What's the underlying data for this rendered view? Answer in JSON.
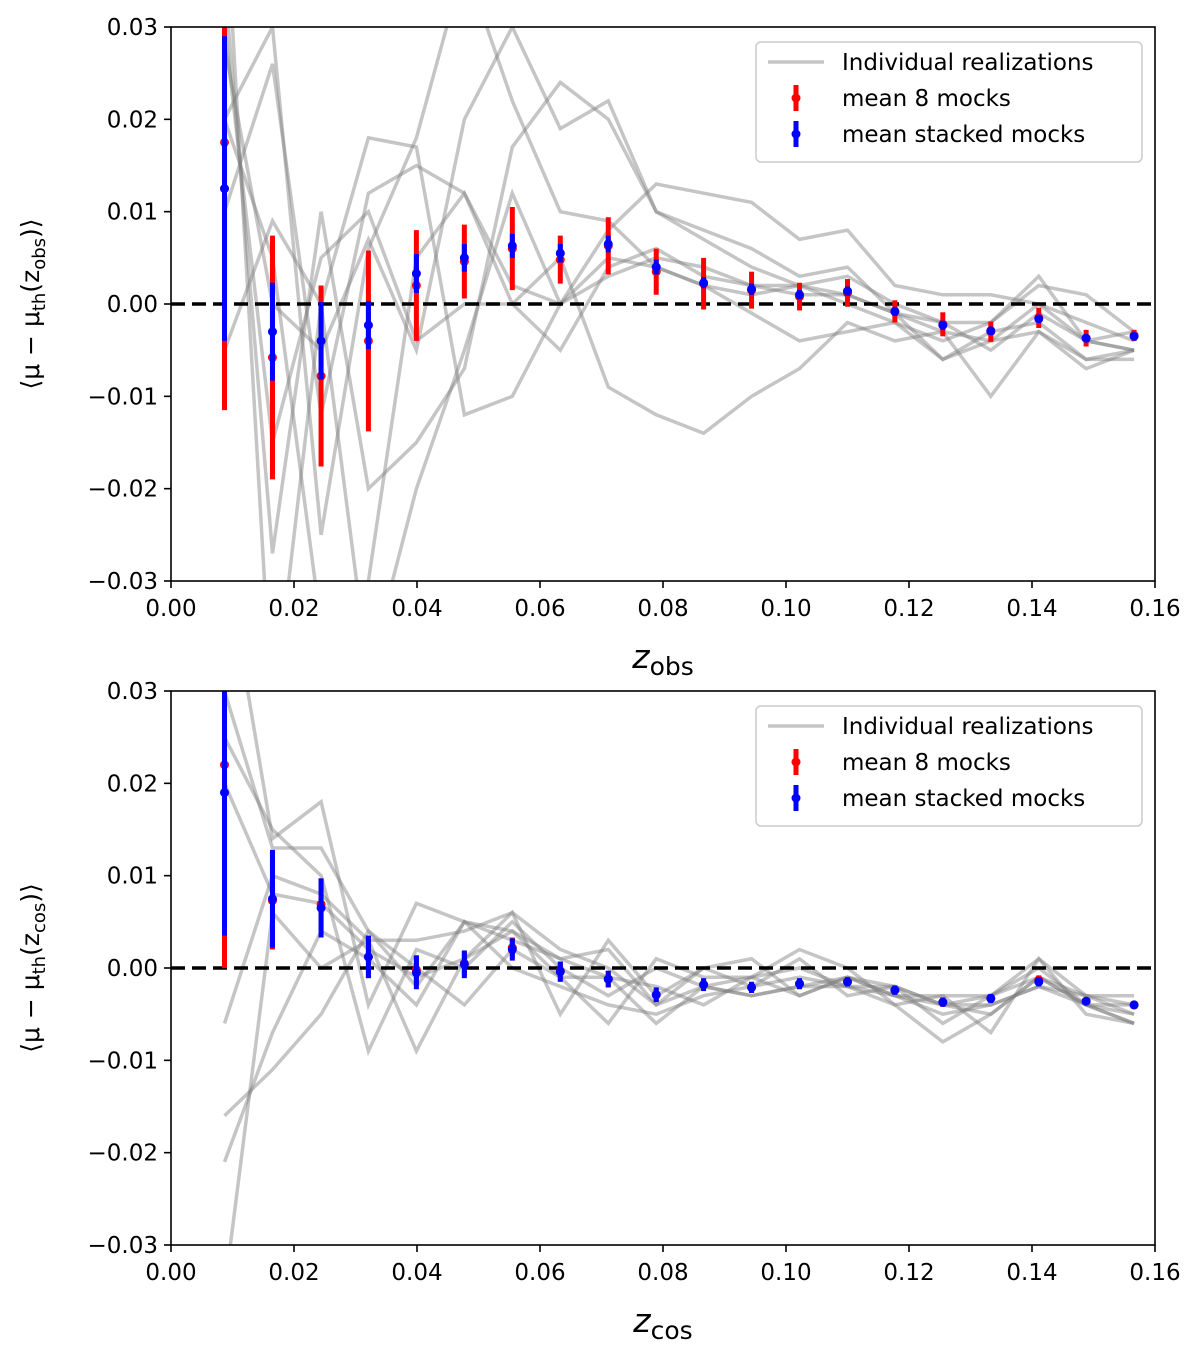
{
  "figure": {
    "colors": {
      "realization": "#7f7f7f",
      "mean8": "#ff0000",
      "stacked": "#0000ff",
      "zero": "#000000"
    }
  },
  "chart_data": [
    {
      "type": "errorbar",
      "panel": "top",
      "xlabel_main": "z",
      "xlabel_sub": "obs",
      "ylabel": "⟨μ − μth(zobs)⟩",
      "ylabel_parts": {
        "open": "⟨μ − μ",
        "th": "th",
        "mid": "(z",
        "sub": "obs",
        "close": ")⟩"
      },
      "xlim": [
        0.0,
        0.16
      ],
      "ylim": [
        -0.03,
        0.03
      ],
      "xticks": [
        0.0,
        0.02,
        0.04,
        0.06,
        0.08,
        0.1,
        0.12,
        0.14,
        0.16
      ],
      "xtick_labels": [
        "0.00",
        "0.02",
        "0.04",
        "0.06",
        "0.08",
        "0.10",
        "0.12",
        "0.14",
        "0.16"
      ],
      "yticks": [
        -0.03,
        -0.02,
        -0.01,
        0.0,
        0.01,
        0.02,
        0.03
      ],
      "ytick_labels": [
        "−0.03",
        "−0.02",
        "−0.01",
        "0.00",
        "0.01",
        "0.02",
        "0.03"
      ],
      "legend": {
        "position": "top-right",
        "entries": [
          "Individual realizations",
          "mean 8 mocks",
          "mean stacked mocks"
        ]
      },
      "x": [
        0.0087,
        0.0165,
        0.0244,
        0.0321,
        0.0399,
        0.0477,
        0.0555,
        0.0633,
        0.0711,
        0.0789,
        0.0866,
        0.0944,
        0.1022,
        0.11,
        0.1177,
        0.1255,
        0.1333,
        0.1411,
        0.1488,
        0.1566
      ],
      "series": [
        {
          "name": "mean 8 mocks",
          "values": [
            0.0175,
            -0.0058,
            -0.0078,
            -0.004,
            0.002,
            0.0046,
            0.006,
            0.0048,
            0.0063,
            0.0035,
            0.0022,
            0.0015,
            0.0008,
            0.0012,
            -0.0008,
            -0.0022,
            -0.003,
            -0.0015,
            -0.0037,
            -0.0034
          ],
          "err": [
            0.029,
            0.0132,
            0.0098,
            0.0098,
            0.006,
            0.004,
            0.0045,
            0.0026,
            0.0031,
            0.0025,
            0.0028,
            0.002,
            0.0015,
            0.0015,
            0.0012,
            0.0013,
            0.0011,
            0.0011,
            0.0009,
            0.0006
          ]
        },
        {
          "name": "mean stacked mocks",
          "values": [
            0.0125,
            -0.003,
            -0.004,
            -0.0023,
            0.0033,
            0.005,
            0.0063,
            0.0055,
            0.0065,
            0.004,
            0.0023,
            0.0016,
            0.001,
            0.0014,
            -0.0008,
            -0.0023,
            -0.0029,
            -0.0016,
            -0.0037,
            -0.0035
          ],
          "err": [
            0.0165,
            0.0053,
            0.0042,
            0.0026,
            0.0021,
            0.0015,
            0.0013,
            0.001,
            0.0009,
            0.0008,
            0.0006,
            0.0006,
            0.0005,
            0.0005,
            0.0005,
            0.0005,
            0.0004,
            0.0004,
            0.0004,
            0.0003
          ]
        }
      ],
      "realizations": [
        [
          0.02,
          0.03,
          -0.025,
          0.006,
          0.018,
          0.037,
          0.022,
          0.01,
          0.009,
          0.004,
          0.002,
          0.001,
          0.002,
          0.001,
          -0.001,
          -0.003,
          -0.004,
          -0.003,
          -0.006,
          -0.005
        ],
        [
          0.01,
          0.026,
          -0.012,
          0.012,
          0.015,
          0.012,
          0.002,
          0.0,
          0.008,
          0.013,
          0.012,
          0.011,
          0.007,
          0.008,
          0.002,
          0.001,
          0.001,
          0.0,
          -0.004,
          -0.003
        ],
        [
          -0.005,
          0.009,
          0.0,
          0.018,
          0.017,
          -0.012,
          -0.01,
          0.0,
          0.005,
          0.004,
          0.002,
          -0.001,
          -0.004,
          -0.003,
          -0.002,
          -0.006,
          -0.004,
          0.0,
          -0.002,
          -0.004
        ],
        [
          0.035,
          -0.027,
          0.01,
          -0.02,
          -0.015,
          -0.007,
          0.017,
          0.024,
          0.02,
          0.01,
          0.007,
          0.004,
          0.002,
          0.003,
          0.0,
          -0.002,
          -0.005,
          -0.001,
          -0.004,
          -0.005
        ],
        [
          0.03,
          -0.015,
          0.005,
          0.01,
          -0.004,
          0.0,
          0.0,
          0.005,
          -0.009,
          -0.012,
          -0.014,
          -0.01,
          -0.007,
          -0.002,
          -0.004,
          -0.003,
          -0.01,
          -0.003,
          -0.007,
          -0.005
        ],
        [
          0.045,
          -0.045,
          0.0,
          -0.04,
          -0.02,
          -0.005,
          0.012,
          0.0,
          0.003,
          0.005,
          0.004,
          0.002,
          0.002,
          0.0,
          -0.002,
          -0.004,
          -0.002,
          0.003,
          -0.004,
          -0.005
        ],
        [
          0.02,
          0.005,
          -0.035,
          -0.03,
          0.005,
          0.012,
          0.0,
          -0.005,
          0.004,
          0.006,
          0.003,
          0.002,
          0.001,
          0.001,
          -0.001,
          -0.002,
          -0.002,
          0.002,
          0.001,
          -0.003
        ],
        [
          0.028,
          0.0,
          -0.005,
          0.007,
          -0.005,
          0.02,
          0.03,
          0.019,
          0.022,
          0.01,
          0.008,
          0.006,
          0.003,
          0.004,
          -0.001,
          -0.006,
          -0.003,
          -0.002,
          -0.006,
          -0.006
        ]
      ]
    },
    {
      "type": "errorbar",
      "panel": "bottom",
      "xlabel_main": "z",
      "xlabel_sub": "cos",
      "ylabel": "⟨μ − μth(zcos)⟩",
      "ylabel_parts": {
        "open": "⟨μ − μ",
        "th": "th",
        "mid": "(z",
        "sub": "cos",
        "close": ")⟩"
      },
      "xlim": [
        0.0,
        0.16
      ],
      "ylim": [
        -0.03,
        0.03
      ],
      "xticks": [
        0.0,
        0.02,
        0.04,
        0.06,
        0.08,
        0.1,
        0.12,
        0.14,
        0.16
      ],
      "xtick_labels": [
        "0.00",
        "0.02",
        "0.04",
        "0.06",
        "0.08",
        "0.10",
        "0.12",
        "0.14",
        "0.16"
      ],
      "yticks": [
        -0.03,
        -0.02,
        -0.01,
        0.0,
        0.01,
        0.02,
        0.03
      ],
      "ytick_labels": [
        "−0.03",
        "−0.02",
        "−0.01",
        "0.00",
        "0.01",
        "0.02",
        "0.03"
      ],
      "legend": {
        "position": "top-right",
        "entries": [
          "Individual realizations",
          "mean 8 mocks",
          "mean stacked mocks"
        ]
      },
      "x": [
        0.0087,
        0.0165,
        0.0244,
        0.0321,
        0.0399,
        0.0477,
        0.0555,
        0.0633,
        0.0711,
        0.0789,
        0.0866,
        0.0944,
        0.1022,
        0.11,
        0.1177,
        0.1255,
        0.1333,
        0.1411,
        0.1488,
        0.1566
      ],
      "series": [
        {
          "name": "mean 8 mocks",
          "values": [
            0.022,
            0.0073,
            0.0069,
            0.0012,
            -0.0002,
            0.0005,
            0.0022,
            -0.0003,
            -0.0012,
            -0.0029,
            -0.0018,
            -0.0021,
            -0.0017,
            -0.0015,
            -0.0024,
            -0.0037,
            -0.0033,
            -0.0013,
            -0.0036,
            -0.004
          ],
          "err": [
            0.022,
            0.0053,
            0.0028,
            0.0023,
            0.0016,
            0.0013,
            0.0011,
            0.001,
            0.0009,
            0.0007,
            0.0006,
            0.0006,
            0.0005,
            0.0005,
            0.0005,
            0.0005,
            0.0004,
            0.0005,
            0.0003,
            0.0003
          ]
        },
        {
          "name": "mean stacked mocks",
          "values": [
            0.019,
            0.0075,
            0.0065,
            0.0012,
            -0.0005,
            0.0004,
            0.002,
            -0.0004,
            -0.0012,
            -0.0029,
            -0.0018,
            -0.0021,
            -0.0017,
            -0.0015,
            -0.0024,
            -0.0037,
            -0.0033,
            -0.0015,
            -0.0036,
            -0.004
          ],
          "err": [
            0.0155,
            0.0053,
            0.0032,
            0.0023,
            0.0018,
            0.0015,
            0.0012,
            0.0011,
            0.0009,
            0.0008,
            0.0007,
            0.0006,
            0.0006,
            0.0005,
            0.0005,
            0.0005,
            0.0005,
            0.0005,
            0.0004,
            0.0004
          ]
        }
      ],
      "realizations": [
        [
          0.045,
          0.014,
          0.018,
          -0.004,
          0.007,
          0.005,
          0.004,
          0.001,
          -0.001,
          -0.002,
          -0.004,
          -0.001,
          -0.003,
          -0.001,
          -0.003,
          -0.005,
          -0.004,
          -0.002,
          -0.004,
          -0.004
        ],
        [
          0.03,
          0.013,
          0.013,
          0.004,
          -0.002,
          0.005,
          0.003,
          0.001,
          0.002,
          -0.004,
          0.0,
          -0.002,
          0.001,
          -0.003,
          -0.002,
          -0.006,
          -0.003,
          0.001,
          -0.003,
          -0.005
        ],
        [
          0.025,
          0.015,
          0.01,
          -0.009,
          0.002,
          0.0,
          0.005,
          0.0,
          -0.003,
          0.0,
          -0.002,
          -0.001,
          0.0,
          -0.002,
          -0.004,
          -0.003,
          -0.003,
          -0.001,
          -0.004,
          -0.006
        ],
        [
          -0.006,
          0.01,
          0.008,
          0.003,
          -0.009,
          0.001,
          0.006,
          -0.005,
          0.003,
          -0.003,
          0.0,
          0.001,
          -0.003,
          -0.001,
          -0.003,
          -0.004,
          -0.005,
          -0.001,
          -0.003,
          -0.004
        ],
        [
          -0.016,
          -0.011,
          -0.005,
          0.004,
          0.0,
          -0.004,
          0.002,
          -0.001,
          -0.006,
          0.001,
          -0.001,
          -0.001,
          0.002,
          0.0,
          -0.004,
          -0.008,
          -0.005,
          -0.001,
          -0.004,
          -0.006
        ],
        [
          -0.021,
          -0.007,
          0.004,
          0.001,
          -0.004,
          0.005,
          0.0,
          -0.002,
          -0.004,
          -0.005,
          -0.003,
          -0.002,
          -0.001,
          -0.002,
          -0.003,
          -0.003,
          -0.007,
          0.001,
          -0.005,
          -0.006
        ],
        [
          -0.035,
          0.006,
          0.0,
          0.003,
          0.003,
          0.004,
          0.006,
          0.002,
          0.0,
          -0.004,
          -0.002,
          -0.003,
          -0.002,
          -0.001,
          -0.002,
          -0.004,
          -0.004,
          -0.002,
          -0.003,
          -0.003
        ],
        [
          0.02,
          0.008,
          0.007,
          0.002,
          -0.001,
          0.001,
          0.004,
          -0.001,
          -0.001,
          -0.006,
          -0.002,
          -0.003,
          -0.002,
          -0.002,
          -0.002,
          -0.004,
          -0.003,
          0.0,
          -0.004,
          -0.005
        ]
      ]
    }
  ]
}
